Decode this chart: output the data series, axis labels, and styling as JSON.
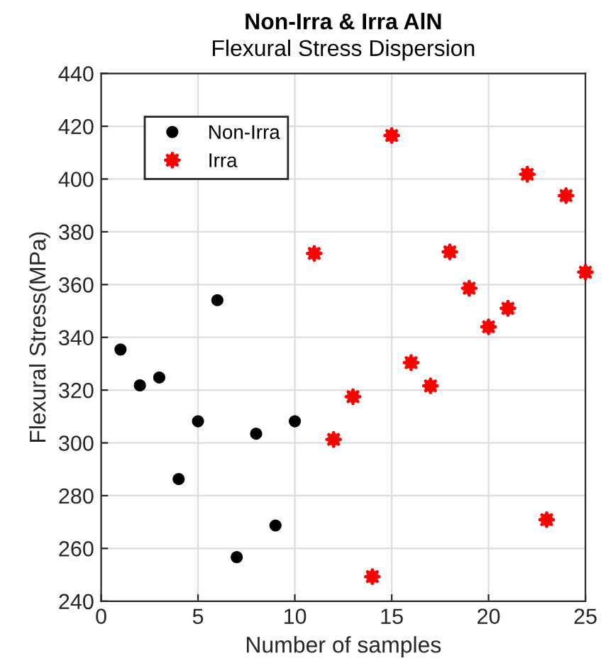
{
  "chart_data": {
    "type": "scatter",
    "title": "Non-Irra & Irra AlN",
    "subtitle": "Flexural Stress Dispersion",
    "xlabel": "Number of samples",
    "ylabel": "Flexural Stress(MPa)",
    "series": [
      {
        "name": "Non-Irra",
        "color": "#000000",
        "marker": "circle",
        "x": [
          1,
          2,
          3,
          4,
          5,
          6,
          7,
          8,
          9,
          10
        ],
        "values": [
          335.4,
          321.8,
          324.8,
          286.3,
          308.2,
          354.1,
          256.7,
          303.5,
          268.7,
          308.2
        ]
      },
      {
        "name": "Irra",
        "color": "#ff0000",
        "marker": "star",
        "x": [
          11,
          12,
          13,
          14,
          15,
          16,
          17,
          18,
          19,
          20,
          21,
          22,
          23,
          24,
          25
        ],
        "values": [
          371.8,
          301.3,
          317.5,
          249.3,
          416.5,
          330.4,
          321.6,
          372.4,
          358.6,
          344,
          351,
          401.8,
          270.9,
          393.7,
          364.7
        ]
      }
    ],
    "xlim": [
      0,
      25
    ],
    "xticks": [
      0,
      5,
      10,
      15,
      20,
      25
    ],
    "ylim": [
      240,
      440
    ],
    "yticks": [
      240,
      260,
      280,
      300,
      320,
      340,
      360,
      380,
      400,
      420,
      440
    ],
    "grid": true,
    "legend": "top left"
  }
}
